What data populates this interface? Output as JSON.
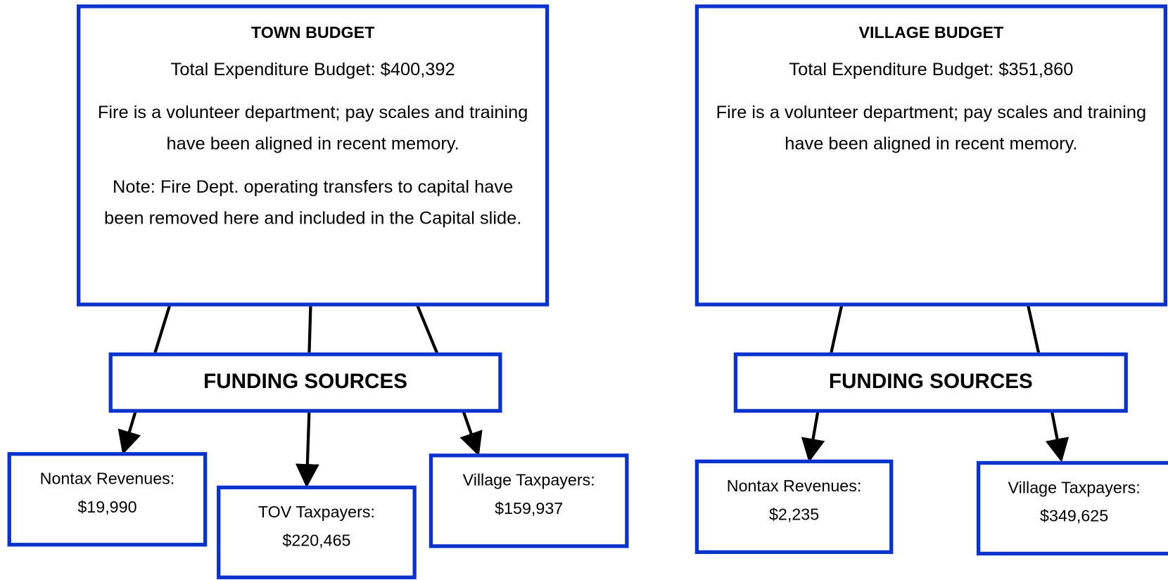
{
  "town": {
    "title": "TOWN BUDGET",
    "total": "Total Expenditure Budget: $400,392",
    "description": "Fire is a volunteer department; pay scales and training have been aligned in recent memory.",
    "note": "Note: Fire Dept. operating transfers to capital have been removed here and included in the Capital slide.",
    "funding": "FUNDING SOURCES",
    "sources": [
      {
        "label": "Nontax Revenues:",
        "amount": "$19,990"
      },
      {
        "label": "TOV Taxpayers:",
        "amount": "$220,465"
      },
      {
        "label": "Village Taxpayers:",
        "amount": "$159,937"
      }
    ]
  },
  "village": {
    "title": "VILLAGE BUDGET",
    "total": "Total Expenditure Budget: $351,860",
    "description": "Fire is a volunteer department; pay scales and training have been aligned in recent memory.",
    "funding": "FUNDING SOURCES",
    "sources": [
      {
        "label": "Nontax Revenues:",
        "amount": "$2,235"
      },
      {
        "label": "Village Taxpayers:",
        "amount": "$349,625"
      }
    ]
  }
}
